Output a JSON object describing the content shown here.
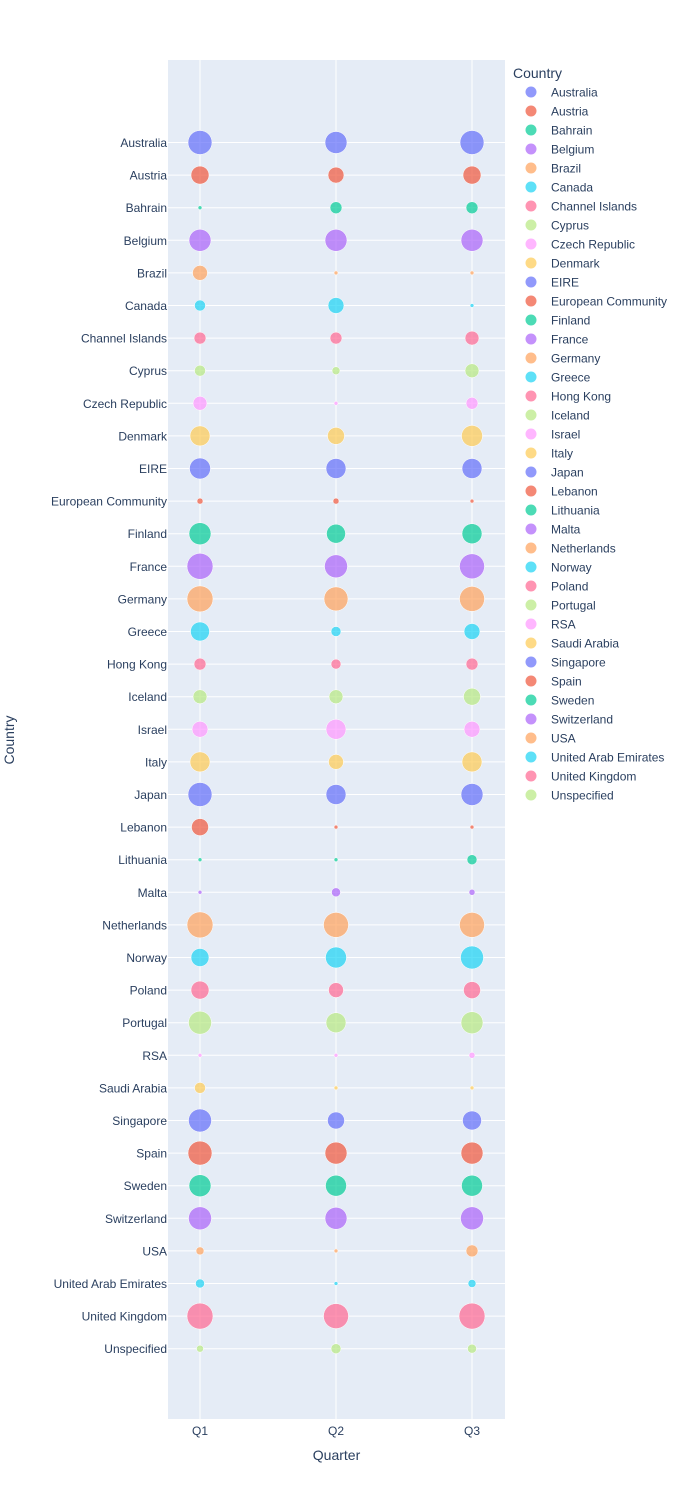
{
  "chart_data": {
    "type": "scatter",
    "subtype": "bubble",
    "xlabel": "Quarter",
    "ylabel": "Country",
    "legend_title": "Country",
    "legend_position": "right",
    "grid": true,
    "categories_x": [
      "Q1",
      "Q2",
      "Q3"
    ],
    "categories_y": [
      "Australia",
      "Austria",
      "Bahrain",
      "Belgium",
      "Brazil",
      "Canada",
      "Channel Islands",
      "Cyprus",
      "Czech Republic",
      "Denmark",
      "EIRE",
      "European Community",
      "Finland",
      "France",
      "Germany",
      "Greece",
      "Hong Kong",
      "Iceland",
      "Israel",
      "Italy",
      "Japan",
      "Lebanon",
      "Lithuania",
      "Malta",
      "Netherlands",
      "Norway",
      "Poland",
      "Portugal",
      "RSA",
      "Saudi Arabia",
      "Singapore",
      "Spain",
      "Sweden",
      "Switzerland",
      "USA",
      "United Arab Emirates",
      "United Kingdom",
      "Unspecified"
    ],
    "palette": [
      "#636efa",
      "#EF553B",
      "#00cc96",
      "#ab63fa",
      "#FFA15A",
      "#19d3f3",
      "#FF6692",
      "#B6E880",
      "#FF97FF",
      "#FECB52"
    ],
    "marker_opacity": 0.7,
    "series": [
      {
        "name": "Australia",
        "values": [
          12,
          11,
          12
        ]
      },
      {
        "name": "Austria",
        "values": [
          9,
          8,
          9
        ]
      },
      {
        "name": "Bahrain",
        "values": [
          2,
          6,
          6
        ]
      },
      {
        "name": "Belgium",
        "values": [
          11,
          11,
          11
        ]
      },
      {
        "name": "Brazil",
        "values": [
          7.5,
          2,
          2
        ]
      },
      {
        "name": "Canada",
        "values": [
          5.5,
          8,
          2
        ]
      },
      {
        "name": "Channel Islands",
        "values": [
          6,
          6,
          7
        ]
      },
      {
        "name": "Cyprus",
        "values": [
          5.5,
          4,
          7
        ]
      },
      {
        "name": "Czech Republic",
        "values": [
          7,
          2,
          6
        ]
      },
      {
        "name": "Denmark",
        "values": [
          10,
          8.5,
          10.5
        ]
      },
      {
        "name": "EIRE",
        "values": [
          10.5,
          10,
          10
        ]
      },
      {
        "name": "European Community",
        "values": [
          3,
          3,
          2
        ]
      },
      {
        "name": "Finland",
        "values": [
          11,
          9.5,
          10
        ]
      },
      {
        "name": "France",
        "values": [
          13,
          11.5,
          12.5
        ]
      },
      {
        "name": "Germany",
        "values": [
          13,
          12,
          12.5
        ]
      },
      {
        "name": "Greece",
        "values": [
          9.5,
          5,
          8
        ]
      },
      {
        "name": "Hong Kong",
        "values": [
          6,
          5,
          6
        ]
      },
      {
        "name": "Iceland",
        "values": [
          7,
          7,
          8.5
        ]
      },
      {
        "name": "Israel",
        "values": [
          8,
          10,
          8
        ]
      },
      {
        "name": "Italy",
        "values": [
          10,
          7.5,
          10
        ]
      },
      {
        "name": "Japan",
        "values": [
          12,
          10,
          11
        ]
      },
      {
        "name": "Lebanon",
        "values": [
          8.5,
          2,
          2
        ]
      },
      {
        "name": "Lithuania",
        "values": [
          2,
          2,
          5
        ]
      },
      {
        "name": "Malta",
        "values": [
          2,
          4.5,
          3
        ]
      },
      {
        "name": "Netherlands",
        "values": [
          13,
          12.5,
          12.5
        ]
      },
      {
        "name": "Norway",
        "values": [
          9,
          10.5,
          11.5
        ]
      },
      {
        "name": "Poland",
        "values": [
          9,
          7.5,
          8.5
        ]
      },
      {
        "name": "Portugal",
        "values": [
          11.5,
          10,
          11
        ]
      },
      {
        "name": "RSA",
        "values": [
          2,
          2,
          3
        ]
      },
      {
        "name": "Saudi Arabia",
        "values": [
          5.5,
          2,
          2
        ]
      },
      {
        "name": "Singapore",
        "values": [
          11.5,
          8.5,
          9.5
        ]
      },
      {
        "name": "Spain",
        "values": [
          12,
          11,
          11
        ]
      },
      {
        "name": "Sweden",
        "values": [
          11,
          10.5,
          10.5
        ]
      },
      {
        "name": "Switzerland",
        "values": [
          11.5,
          11,
          11.5
        ]
      },
      {
        "name": "USA",
        "values": [
          4,
          2,
          6
        ]
      },
      {
        "name": "United Arab Emirates",
        "values": [
          4.5,
          2,
          4
        ]
      },
      {
        "name": "United Kingdom",
        "values": [
          13,
          12.5,
          13
        ]
      },
      {
        "name": "Unspecified",
        "values": [
          3.5,
          5,
          4.5
        ]
      }
    ]
  }
}
